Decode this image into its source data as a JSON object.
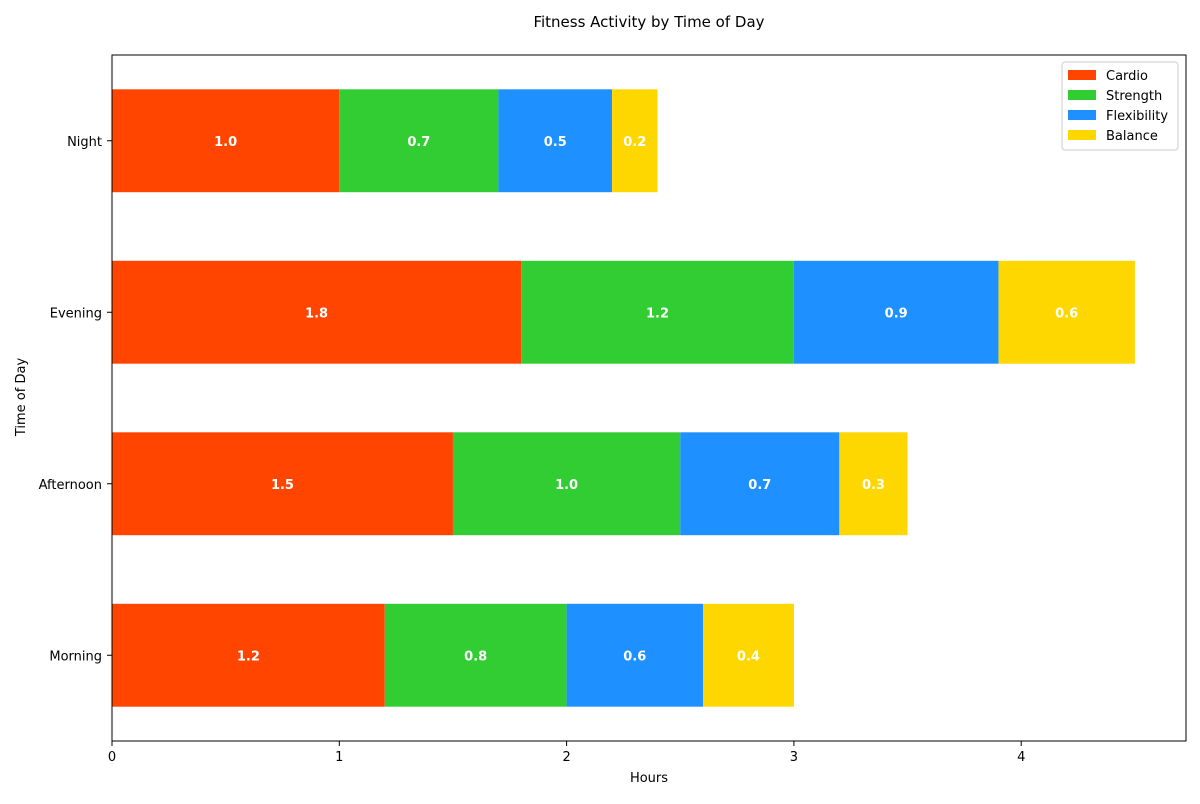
{
  "chart_data": {
    "type": "bar",
    "orientation": "horizontal",
    "stacked": true,
    "title": "Fitness Activity by Time of Day",
    "xlabel": "Hours",
    "ylabel": "Time of Day",
    "categories": [
      "Morning",
      "Afternoon",
      "Evening",
      "Night"
    ],
    "xlim": [
      0,
      4.725
    ],
    "x_ticks": [
      0,
      1,
      2,
      3,
      4
    ],
    "grid": false,
    "legend_position": "top-right",
    "series": [
      {
        "name": "Cardio",
        "color": "#FF4500",
        "values": [
          1.2,
          1.5,
          1.8,
          1.0
        ],
        "labels": [
          "1.2",
          "1.5",
          "1.8",
          "1.0"
        ]
      },
      {
        "name": "Strength",
        "color": "#32CD32",
        "values": [
          0.8,
          1.0,
          1.2,
          0.7
        ],
        "labels": [
          "0.8",
          "1.0",
          "1.2",
          "0.7"
        ]
      },
      {
        "name": "Flexibility",
        "color": "#1E90FF",
        "values": [
          0.6,
          0.7,
          0.9,
          0.5
        ],
        "labels": [
          "0.6",
          "0.7",
          "0.9",
          "0.5"
        ]
      },
      {
        "name": "Balance",
        "color": "#FFD700",
        "values": [
          0.4,
          0.3,
          0.6,
          0.2
        ],
        "labels": [
          "0.4",
          "0.3",
          "0.6",
          "0.2"
        ]
      }
    ]
  }
}
